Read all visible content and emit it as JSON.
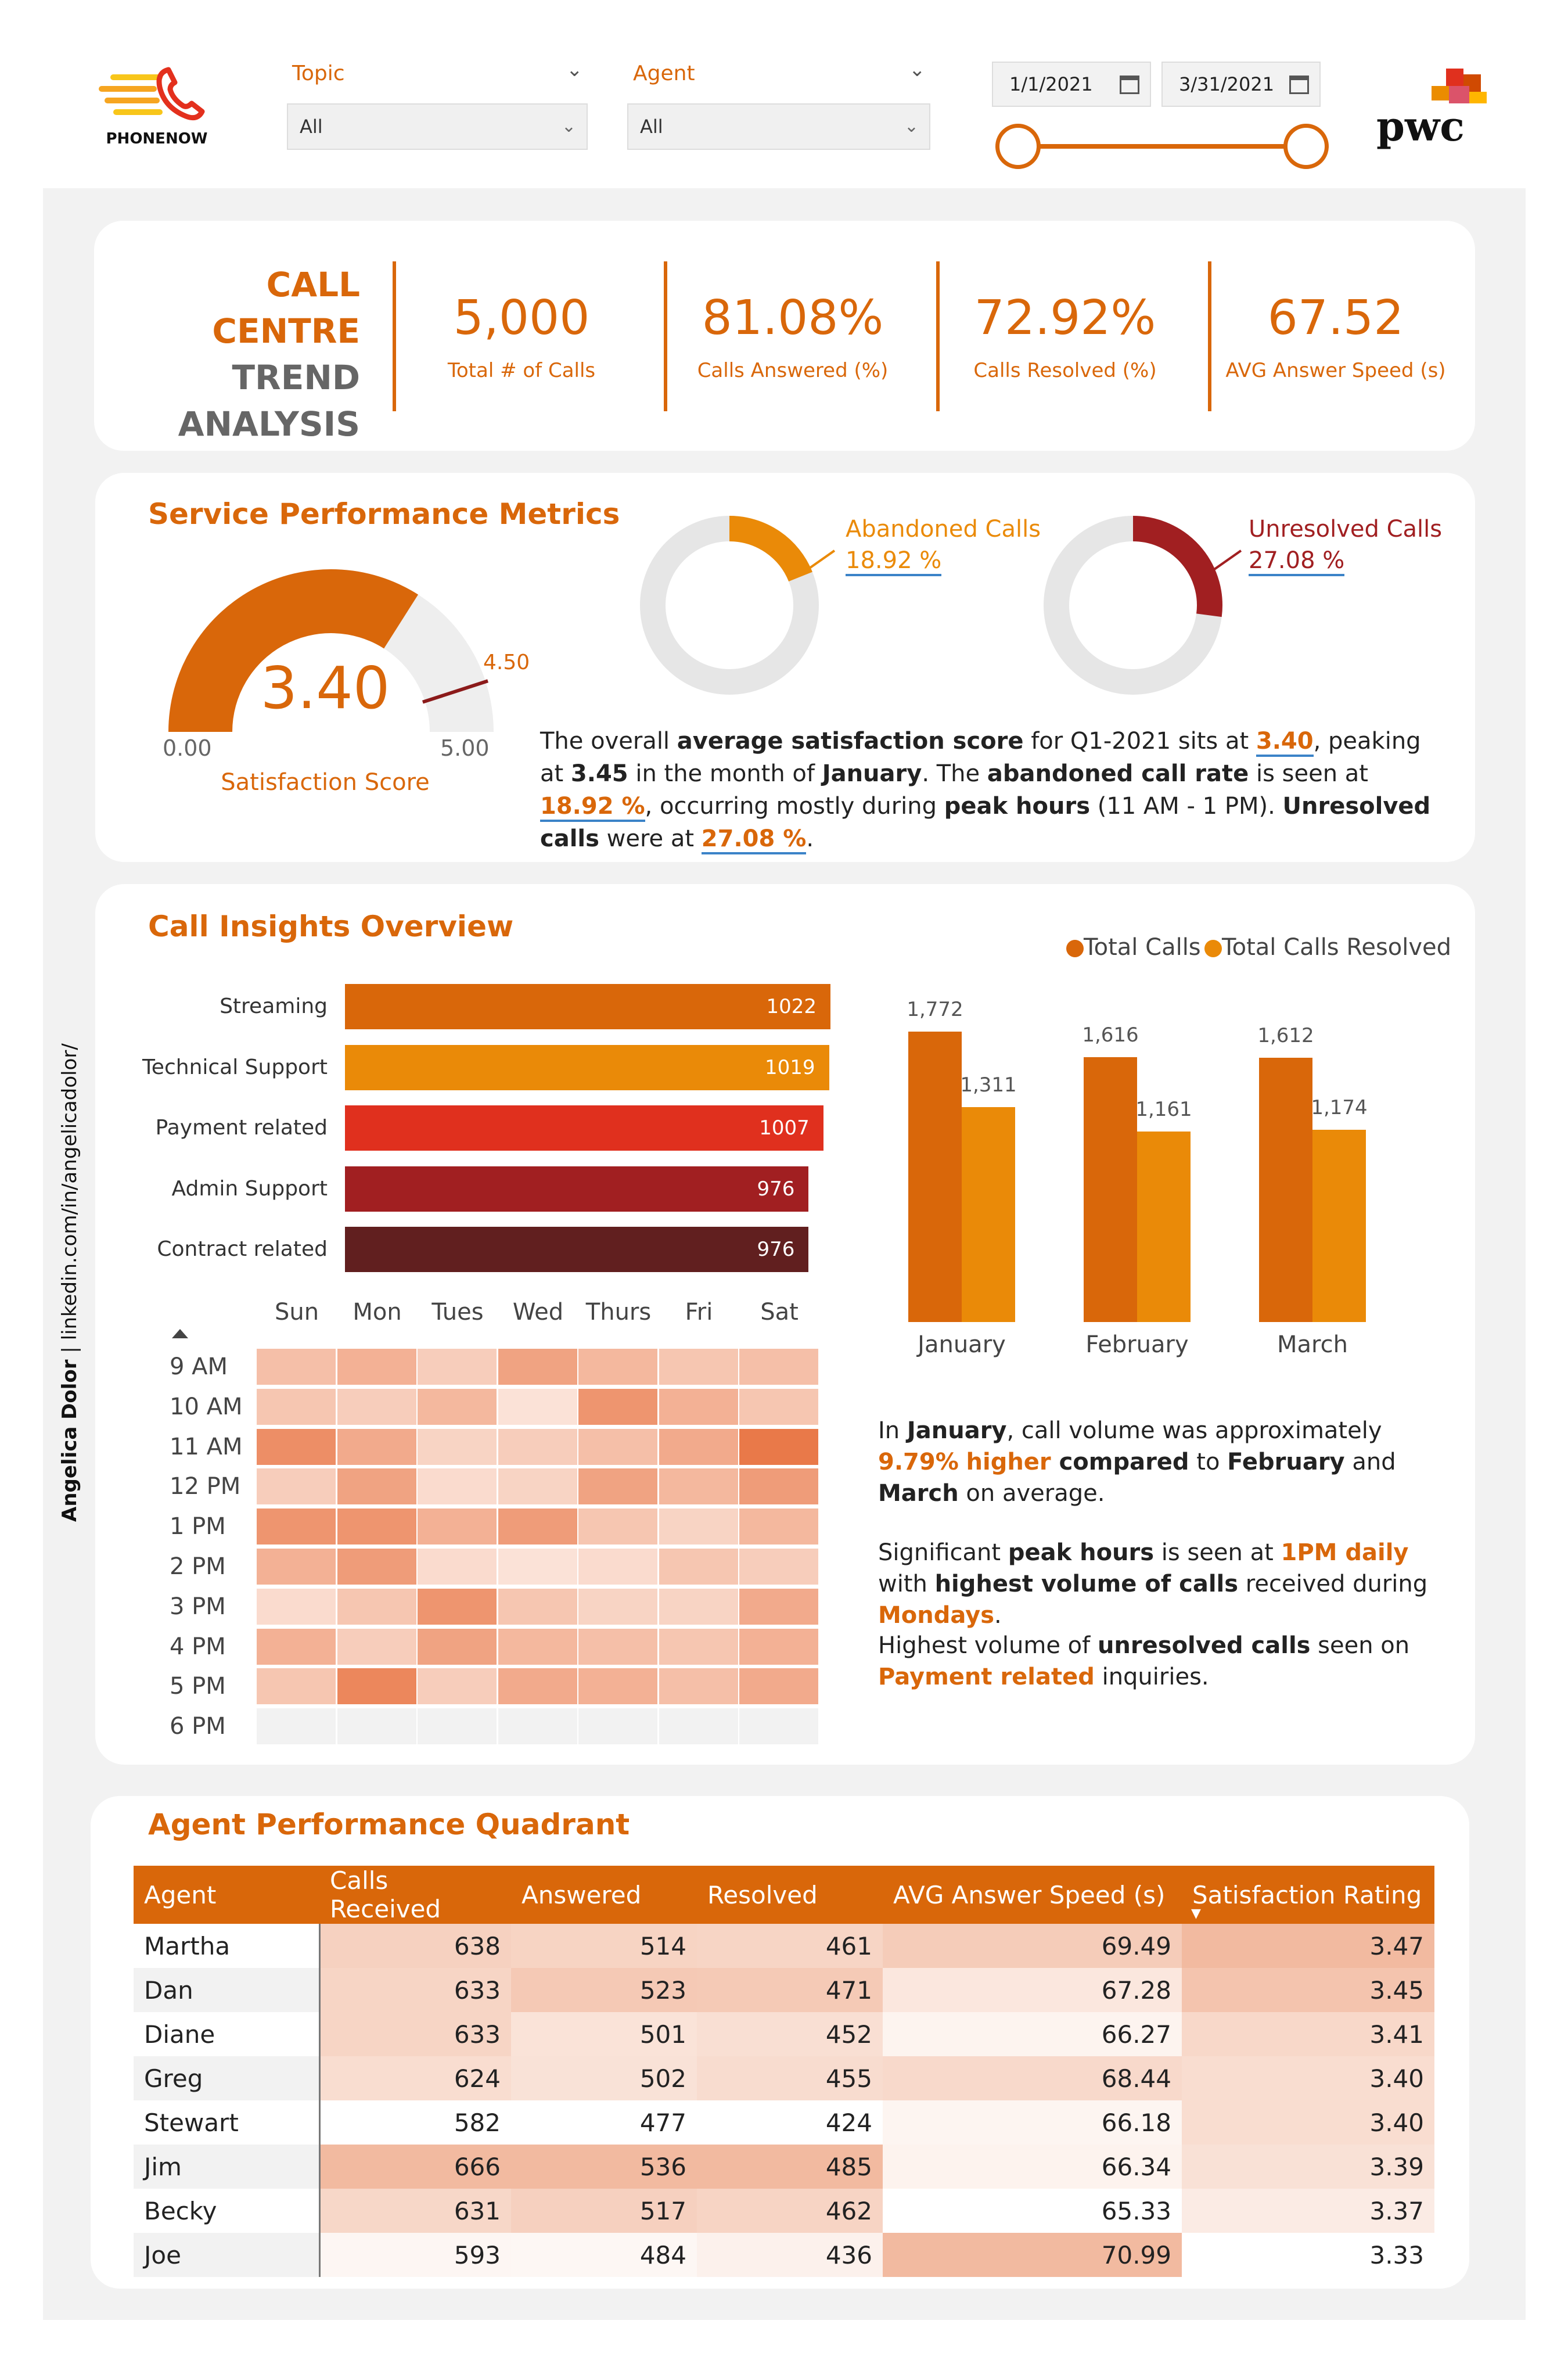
{
  "header": {
    "logo_text": "PHONENOW",
    "topic_label": "Topic",
    "topic_value": "All",
    "agent_label": "Agent",
    "agent_value": "All",
    "date_start": "1/1/2021",
    "date_end": "3/31/2021",
    "brand_text": "pwc"
  },
  "kpis": {
    "title_line1": "CALL CENTRE",
    "title_line2": "TREND",
    "title_line3": "ANALYSIS",
    "items": [
      {
        "value": "5,000",
        "label": "Total # of Calls"
      },
      {
        "value": "81.08%",
        "label": "Calls Answered (%)"
      },
      {
        "value": "72.92%",
        "label": "Calls Resolved (%)"
      },
      {
        "value": "67.52",
        "label": "AVG Answer Speed (s)"
      }
    ]
  },
  "service": {
    "title": "Service Performance Metrics",
    "gauge": {
      "value": 3.4,
      "value_text": "3.40",
      "min_text": "0.00",
      "max_text": "5.00",
      "target": 4.5,
      "target_text": "4.50",
      "label": "Satisfaction Score",
      "min": 0,
      "max": 5
    },
    "abandoned": {
      "label": "Abandoned Calls",
      "pct_text": "18.92 %",
      "pct": 18.92
    },
    "unresolved": {
      "label": "Unresolved Calls",
      "pct_text": "27.08 %",
      "pct": 27.08
    }
  },
  "insights": {
    "title": "Call Insights Overview",
    "topics": [
      {
        "label": "Streaming",
        "value": 1022
      },
      {
        "label": "Technical Support",
        "value": 1019
      },
      {
        "label": "Payment related",
        "value": 1007
      },
      {
        "label": "Admin Support",
        "value": 976
      },
      {
        "label": "Contract related",
        "value": 976
      }
    ],
    "heatmap": {
      "days": [
        "Sun",
        "Mon",
        "Tues",
        "Wed",
        "Thurs",
        "Fri",
        "Sat"
      ],
      "hours": [
        "9 AM",
        "10 AM",
        "11 AM",
        "12 PM",
        "1 PM",
        "2 PM",
        "3 PM",
        "4 PM",
        "5 PM",
        "6 PM"
      ],
      "intensity": [
        [
          0.35,
          0.45,
          0.25,
          0.55,
          0.4,
          0.3,
          0.35
        ],
        [
          0.3,
          0.25,
          0.4,
          0.1,
          0.65,
          0.45,
          0.3
        ],
        [
          0.7,
          0.5,
          0.2,
          0.25,
          0.35,
          0.5,
          0.85
        ],
        [
          0.25,
          0.55,
          0.15,
          0.2,
          0.55,
          0.4,
          0.6
        ],
        [
          0.65,
          0.65,
          0.45,
          0.6,
          0.3,
          0.2,
          0.4
        ],
        [
          0.45,
          0.6,
          0.15,
          0.1,
          0.15,
          0.3,
          0.25
        ],
        [
          0.15,
          0.3,
          0.65,
          0.3,
          0.2,
          0.2,
          0.5
        ],
        [
          0.45,
          0.25,
          0.55,
          0.4,
          0.35,
          0.3,
          0.45
        ],
        [
          0.3,
          0.75,
          0.25,
          0.5,
          0.45,
          0.35,
          0.5
        ],
        [
          0,
          0,
          0,
          0,
          0,
          0,
          0
        ]
      ]
    },
    "legend_total": "Total Calls",
    "legend_resolved": "Total Calls Resolved",
    "note_january_prefix": "In ",
    "note_january_month": "January",
    "note_january_mid": ", call volume was approximately ",
    "note_january_pct": "9.79%",
    "note_january_higher": "higher",
    "note_january_compared": " compared",
    "note_january_to": " to ",
    "note_january_feb": "February",
    "note_january_and": " and ",
    "note_january_mar": "March",
    "note_january_end": " on average.",
    "note_peak_a": "Significant ",
    "note_peak_b": "peak hours",
    "note_peak_c": " is seen at ",
    "note_peak_d": "1PM daily",
    "note_peak_e": " with ",
    "note_peak_f": "highest volume of calls",
    "note_peak_g": " received during ",
    "note_peak_h": "Mondays",
    "note_peak_i": ".",
    "note_unres_a": "Highest volume of ",
    "note_unres_b": "unresolved calls",
    "note_unres_c": " seen on ",
    "note_unres_d": "Payment related",
    "note_unres_e": " inquiries."
  },
  "service_text": {
    "a": "The overall ",
    "b": "average satisfaction score",
    "c": " for Q1-2021 sits at ",
    "d": "3.40",
    "e": ", peaking at ",
    "f": "3.45",
    "g": " in the month of ",
    "h": "January",
    "i": ". The ",
    "j": "abandoned call rate",
    "k": " is seen at ",
    "l": "18.92 %",
    "m": ", occurring mostly during ",
    "n": "peak hours",
    "o": " (11 AM - 1 PM). ",
    "p": "Unresolved calls",
    "q": " were at ",
    "r": "27.08 %",
    "s": "."
  },
  "chart_data": {
    "type": "bar",
    "categories": [
      "January",
      "February",
      "March"
    ],
    "series": [
      {
        "name": "Total Calls",
        "values": [
          1772,
          1616,
          1612
        ],
        "labels": [
          "1,772",
          "1,616",
          "1,612"
        ]
      },
      {
        "name": "Total Calls Resolved",
        "values": [
          1311,
          1161,
          1174
        ],
        "labels": [
          "1,311",
          "1,161",
          "1,174"
        ]
      }
    ],
    "legend": "top-right",
    "colors": {
      "Total Calls": "#d9670a",
      "Total Calls Resolved": "#ea8a08"
    }
  },
  "agents": {
    "title": "Agent Performance Quadrant",
    "columns": [
      "Agent",
      "Calls Received",
      "Answered",
      "Resolved",
      "AVG Answer Speed (s)",
      "Satisfaction Rating"
    ],
    "sort_indicator": "▼",
    "rows": [
      {
        "name": "Martha",
        "received": "638",
        "answered": "514",
        "resolved": "461",
        "speed": "69.49",
        "rating": "3.47"
      },
      {
        "name": "Dan",
        "received": "633",
        "answered": "523",
        "resolved": "471",
        "speed": "67.28",
        "rating": "3.45"
      },
      {
        "name": "Diane",
        "received": "633",
        "answered": "501",
        "resolved": "452",
        "speed": "66.27",
        "rating": "3.41"
      },
      {
        "name": "Greg",
        "received": "624",
        "answered": "502",
        "resolved": "455",
        "speed": "68.44",
        "rating": "3.40"
      },
      {
        "name": "Stewart",
        "received": "582",
        "answered": "477",
        "resolved": "424",
        "speed": "66.18",
        "rating": "3.40"
      },
      {
        "name": "Jim",
        "received": "666",
        "answered": "536",
        "resolved": "485",
        "speed": "66.34",
        "rating": "3.39"
      },
      {
        "name": "Becky",
        "received": "631",
        "answered": "517",
        "resolved": "462",
        "speed": "65.33",
        "rating": "3.37"
      },
      {
        "name": "Joe",
        "received": "593",
        "answered": "484",
        "resolved": "436",
        "speed": "70.99",
        "rating": "3.33"
      }
    ]
  },
  "credit": {
    "name": "Angelica Dolor",
    "sep": " | ",
    "link": "linkedin.com/in/angelicadolor/"
  },
  "colors": {
    "accent": "#d9670a",
    "accent_light": "#ea8a08",
    "red": "#e0301e",
    "dark_red": "#a11f21",
    "maroon": "#611f1f"
  }
}
